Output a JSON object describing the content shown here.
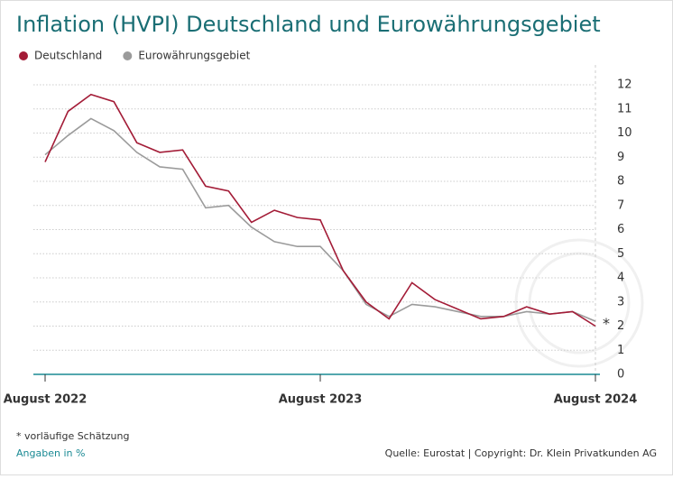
{
  "chart_data": {
    "type": "line",
    "title": "Inflation (HVPI) Deutschland und Eurowährungsgebiet",
    "categories": [
      "August 2022",
      null,
      null,
      null,
      null,
      null,
      null,
      null,
      null,
      null,
      null,
      null,
      "August 2023",
      null,
      null,
      null,
      null,
      null,
      null,
      null,
      null,
      null,
      null,
      null,
      "August 2024"
    ],
    "series": [
      {
        "name": "Deutschland",
        "color": "#a31c37",
        "values": [
          8.8,
          10.9,
          11.6,
          11.3,
          9.6,
          9.2,
          9.3,
          7.8,
          7.6,
          6.3,
          6.8,
          6.5,
          6.4,
          4.3,
          3.0,
          2.3,
          3.8,
          3.1,
          2.7,
          2.3,
          2.4,
          2.8,
          2.5,
          2.6,
          2.0
        ]
      },
      {
        "name": "Eurowährungsgebiet",
        "color": "#9b9b9b",
        "values": [
          9.1,
          9.9,
          10.6,
          10.1,
          9.2,
          8.6,
          8.5,
          6.9,
          7.0,
          6.1,
          5.5,
          5.3,
          5.3,
          4.3,
          2.9,
          2.4,
          2.9,
          2.8,
          2.6,
          2.4,
          2.4,
          2.6,
          2.5,
          2.6,
          2.2
        ]
      }
    ],
    "ylim": [
      0,
      12
    ],
    "yticks": [
      0,
      1,
      2,
      3,
      4,
      5,
      6,
      7,
      8,
      9,
      10,
      11,
      12
    ],
    "grid": true,
    "annotation": "*",
    "footnote": "* vorläufige Schätzung",
    "unit_note": "Angaben in %",
    "source": "Quelle: Eurostat | Copyright: Dr. Klein Privatkunden AG"
  }
}
